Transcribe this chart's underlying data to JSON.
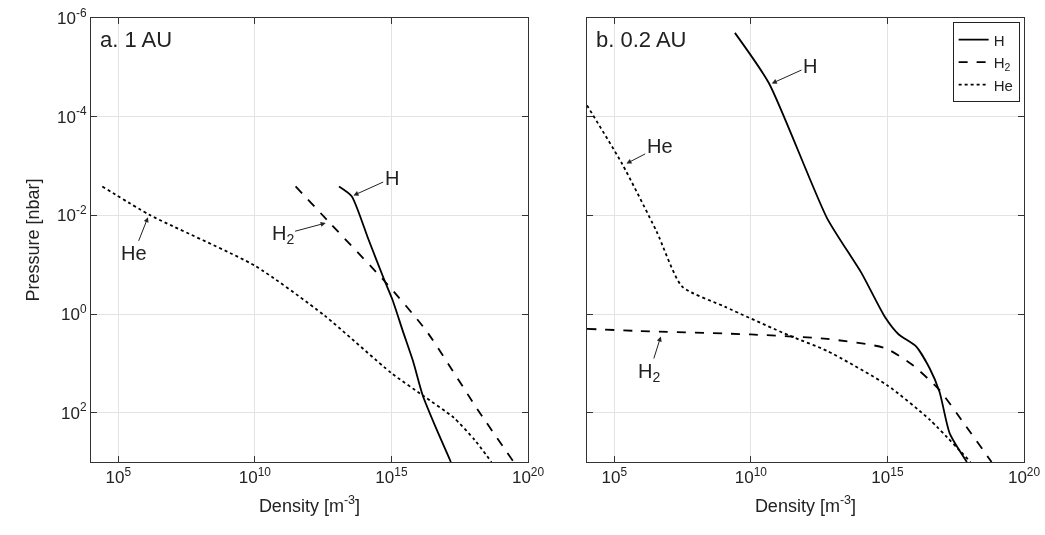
{
  "chart_data": [
    {
      "type": "line",
      "title": "a. 1 AU",
      "xlabel": "Density [m$^{-3}$]",
      "ylabel": "Pressure [nbar]",
      "log": "xy",
      "grid": true,
      "legend": false,
      "marker": "none",
      "xlim": [
        10000.0,
        1e+20
      ],
      "xticks": [
        {
          "value": 100000.0,
          "label": "10$^{5}$"
        },
        {
          "value": 10000000000.0,
          "label": "10$^{10}$"
        },
        {
          "value": 1000000000000000.0,
          "label": "10$^{15}$"
        },
        {
          "value": 1e+20,
          "label": "10$^{20}$"
        }
      ],
      "ylim": [
        1000,
        1e-06
      ],
      "yticks": [
        {
          "value": 1e-06,
          "label": "10$^{-6}$"
        },
        {
          "value": 0.0001,
          "label": "10$^{-4}$"
        },
        {
          "value": 0.01,
          "label": "10$^{-2}$"
        },
        {
          "value": 1,
          "label": "10$^{0}$"
        },
        {
          "value": 100,
          "label": "10$^{2}$"
        }
      ],
      "series": [
        {
          "color": "#000000",
          "line_style": "solid",
          "x": [
            12000000000000.0,
            35000000000000.0,
            140000000000000.0,
            540000000000000.0,
            1100000000000000.0,
            2600000000000000.0,
            6200000000000000.0,
            1.4e+16,
            4.6e+16,
            1.5e+17
          ],
          "values": [
            0.0026,
            0.0041,
            0.0295,
            0.2,
            0.52,
            2.2,
            9.1,
            44.7,
            224,
            1000
          ]
        },
        {
          "color": "#000000",
          "line_style": "dashed",
          "x": [
            310000000000.0,
            5400000000000.0,
            620000000000000.0,
            1.9e+16,
            1.4e+18,
            3e+19
          ],
          "values": [
            0.0026,
            0.014,
            0.23,
            2.2,
            85,
            1000
          ]
        },
        {
          "color": "#000000",
          "line_style": "dotted",
          "x": [
            26000.0,
            1400000.0,
            10000000000.0,
            3500000000000.0,
            1000000000000000.0,
            1.4e+16,
            1.9e+17,
            1.1e+18,
            4.6e+18
          ],
          "values": [
            0.0026,
            0.0098,
            0.105,
            1.07,
            15.8,
            44.7,
            126,
            355,
            1000
          ]
        }
      ],
      "annotations": [
        {
          "text": "H",
          "x": 35000000000000.0,
          "y": 0.0041
        },
        {
          "text": "H$_{2}$",
          "x": 4600000000000.0,
          "y": 0.014
        },
        {
          "text": "He",
          "x": 1300000.0,
          "y": 0.01
        }
      ]
    },
    {
      "type": "line",
      "title": "b. 0.2 AU",
      "xlabel": "Density [m$^{-3}$]",
      "log": "xy",
      "grid": true,
      "legend": "top right",
      "marker": "none",
      "tick_labels": "x",
      "xlim": [
        10000.0,
        1e+20
      ],
      "xticks": [
        {
          "value": 100000.0,
          "label": "10$^{5}$"
        },
        {
          "value": 10000000000.0,
          "label": "10$^{10}$"
        },
        {
          "value": 1000000000000000.0,
          "label": "10$^{15}$"
        },
        {
          "value": 1e+20,
          "label": "10$^{20}$"
        }
      ],
      "ylim": [
        1000,
        1e-06
      ],
      "yticks": [
        {
          "value": 1e-06,
          "label": null
        },
        {
          "value": 0.0001,
          "label": null
        },
        {
          "value": 0.01,
          "label": null
        },
        {
          "value": 1,
          "label": null
        },
        {
          "value": 100,
          "label": null
        }
      ],
      "series": [
        {
          "name": "H",
          "color": "#000000",
          "line_style": "solid",
          "x": [
            2600000000.0,
            46000000000.0,
            6200000000000.0,
            110000000000000.0,
            810000000000000.0,
            2600000000000000.0,
            1.1e+16,
            3.5e+16,
            8.1e+16,
            1.9e+17,
            8.1e+17
          ],
          "values": [
            2e-06,
            2.1e-05,
            0.0115,
            0.145,
            1.15,
            2.6,
            4.5,
            12.6,
            38,
            263,
            1000
          ]
        },
        {
          "name": "H$_{2}$",
          "color": "#000000",
          "line_style": "dashed",
          "x": [
            10000.0,
            620000.0,
            10000000000.0,
            6200000000000.0,
            810000000000000.0,
            8100000000000000.0,
            8.1e+16,
            6.2e+17,
            6.5e+18
          ],
          "values": [
            2.0,
            2.2,
            2.6,
            3.2,
            4.9,
            10.7,
            35,
            162,
            1000
          ]
        },
        {
          "name": "He",
          "color": "#000000",
          "line_style": "dotted",
          "x": [
            10000.0,
            190000.0,
            3500000.0,
            30000000.0,
            1100000000.0,
            260000000000.0,
            6200000000000.0,
            1000000000000000.0,
            3.5e+16,
            1.1e+18
          ],
          "values": [
            5.9e-05,
            0.00089,
            0.021,
            0.275,
            0.71,
            2.75,
            5.6,
            28,
            138,
            1000
          ]
        }
      ],
      "annotations": [
        {
          "text": "H",
          "x": 50000000000.0,
          "y": 2.2e-05
        },
        {
          "text": "He",
          "x": 240000.0,
          "y": 0.00093
        },
        {
          "text": "H$_{2}$",
          "x": 5300000.0,
          "y": 2.6
        }
      ]
    }
  ]
}
